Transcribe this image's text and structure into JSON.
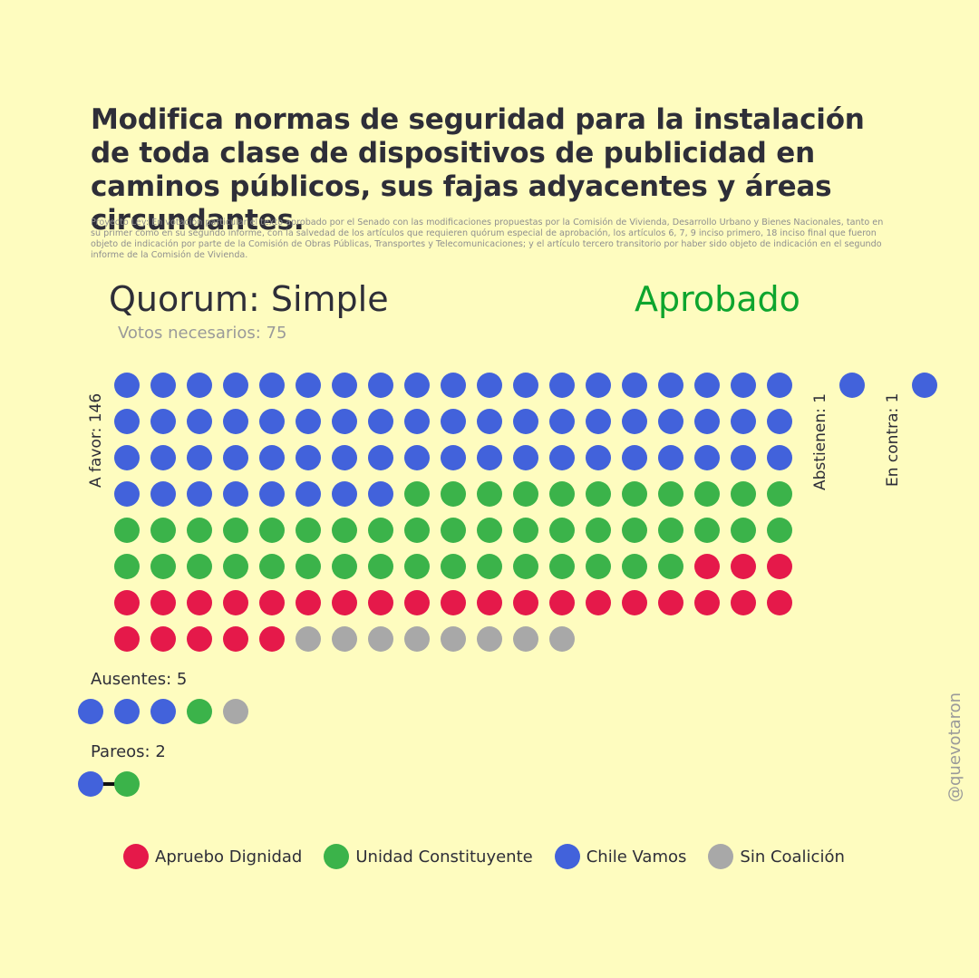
{
  "title": "Modifica normas de seguridad para la instalación de toda clase de dispositivos de publicidad en caminos públicos, sus fajas adyacentes y áreas circundantes.",
  "subtitle": "Proyecto Ley: En votación particular el texto aprobado por el Senado con las modificaciones propuestas por la Comisión de Vivienda, Desarrollo Urbano y Bienes Nacionales, tanto en su primer como en su segundo informe, con la salvedad de los artículos que requieren quórum especial de aprobación, los artículos 6, 7, 9 inciso primero, 18 inciso final que fueron objeto de indicación por parte de la Comisión de Obras Públicas, Transportes y Telecomunicaciones; y el artículo tercero transitorio por haber sido objeto de indicación en el segundo informe de la Comisión de Vivienda.",
  "quorum_label": "Quorum: Simple",
  "result_label": "Aprobado",
  "votes_needed_label": "Votos necesarios: 75",
  "watermark": "@quevotaron",
  "colors": {
    "background": "#fefcbf",
    "result": "#0ea52e",
    "Apruebo Dignidad": "#e5194a",
    "Unidad Constituyente": "#3bb34a",
    "Chile Vamos": "#4262db",
    "Sin Coalición": "#a8a8a8"
  },
  "chart_data": {
    "type": "waffle",
    "groups": [
      {
        "key": "a_favor",
        "label": "A favor: 146",
        "total": 146,
        "breakdown": [
          {
            "coalition": "Chile Vamos",
            "count": 65
          },
          {
            "coalition": "Unidad Constituyente",
            "count": 46
          },
          {
            "coalition": "Apruebo Dignidad",
            "count": 27
          },
          {
            "coalition": "Sin Coalición",
            "count": 8
          }
        ]
      },
      {
        "key": "abstienen",
        "label": "Abstienen: 1",
        "total": 1,
        "breakdown": [
          {
            "coalition": "Chile Vamos",
            "count": 1
          }
        ]
      },
      {
        "key": "en_contra",
        "label": "En contra: 1",
        "total": 1,
        "breakdown": [
          {
            "coalition": "Chile Vamos",
            "count": 1
          }
        ]
      },
      {
        "key": "ausentes",
        "label": "Ausentes: 5",
        "total": 5,
        "breakdown": [
          {
            "coalition": "Chile Vamos",
            "count": 3
          },
          {
            "coalition": "Unidad Constituyente",
            "count": 1
          },
          {
            "coalition": "Sin Coalición",
            "count": 1
          }
        ]
      },
      {
        "key": "pareos",
        "label": "Pareos: 2",
        "total": 2,
        "breakdown": [
          {
            "coalition": "Chile Vamos",
            "count": 1
          },
          {
            "coalition": "Unidad Constituyente",
            "count": 1
          }
        ]
      }
    ],
    "legend": [
      "Apruebo Dignidad",
      "Unidad Constituyente",
      "Chile Vamos",
      "Sin Coalición"
    ],
    "legend_placement": "bottom"
  }
}
